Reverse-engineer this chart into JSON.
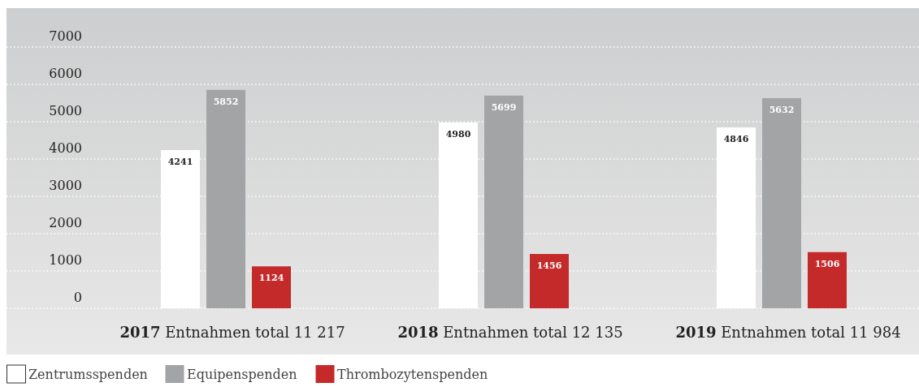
{
  "chart_data": {
    "type": "bar",
    "categories": [
      "2017 Entnahmen total 11 217",
      "2018 Entnahmen total 12 135",
      "2019 Entnahmen total 11 984"
    ],
    "series": [
      {
        "name": "Zentrumsspenden",
        "color": "#ffffff",
        "values": [
          4241,
          4980,
          4846
        ]
      },
      {
        "name": "Equipenspenden",
        "color": "#a3a4a6",
        "values": [
          5852,
          5699,
          5632
        ]
      },
      {
        "name": "Thrombozytenspenden",
        "color": "#c42a2a",
        "values": [
          1124,
          1456,
          1506
        ]
      }
    ],
    "ylim": [
      0,
      7000
    ],
    "yticks": [
      0,
      1000,
      2000,
      3000,
      4000,
      5000,
      6000,
      7000
    ],
    "grid": "y",
    "legend": "bottom left",
    "data_labels": true
  }
}
